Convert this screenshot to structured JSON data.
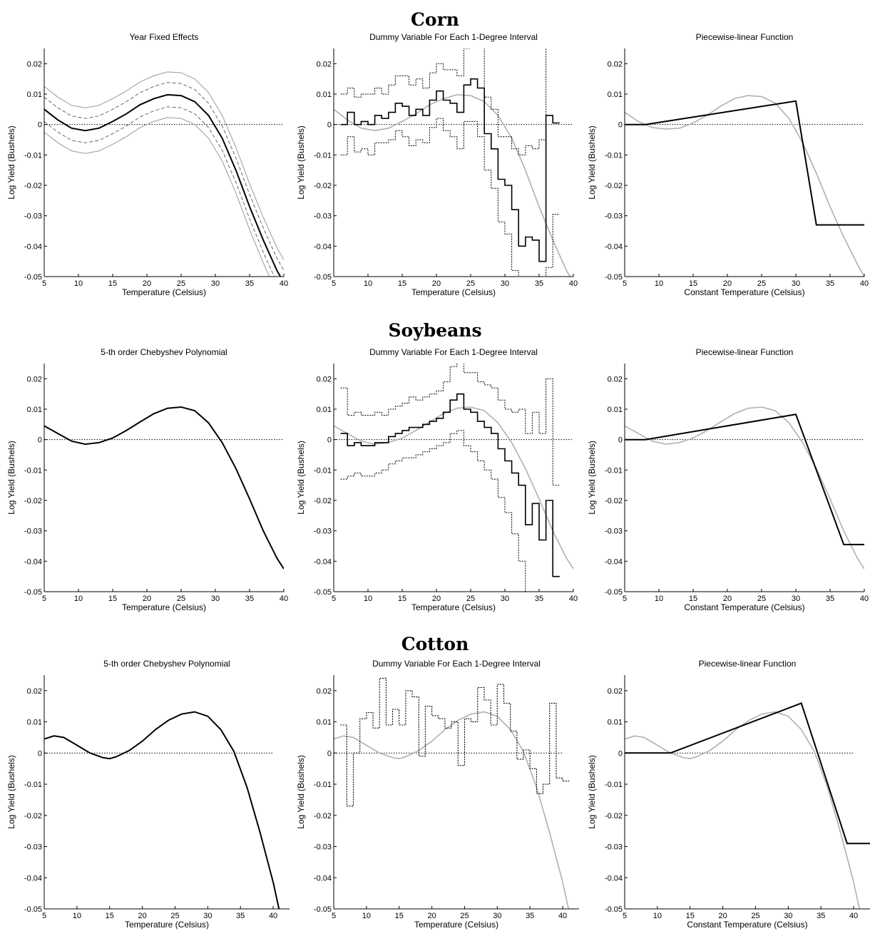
{
  "figure": {
    "crop_titles": [
      "Corn",
      "Soybeans",
      "Cotton"
    ]
  },
  "chart_data": [
    {
      "type": "line",
      "crop": "Corn",
      "title": "Year Fixed Effects",
      "xlabel": "Temperature (Celsius)",
      "ylabel": "Log Yield (Bushels)",
      "xlim": [
        5,
        40
      ],
      "ylim": [
        -0.05,
        0.025
      ],
      "xticks": [
        5,
        10,
        15,
        20,
        25,
        30,
        35,
        40
      ],
      "yticks": [
        "0.02",
        "0.01",
        "0",
        "-0.01",
        "-0.02",
        "-0.03",
        "-0.04",
        "-0.05"
      ],
      "series": [
        {
          "role": "main",
          "x": [
            5,
            7,
            9,
            11,
            13,
            15,
            17,
            19,
            21,
            23,
            25,
            27,
            29,
            31,
            33,
            35,
            37,
            39,
            40
          ],
          "y": [
            0.005,
            0.0015,
            -0.0012,
            -0.002,
            -0.0012,
            0.001,
            0.0035,
            0.0065,
            0.0085,
            0.0098,
            0.0095,
            0.0075,
            0.003,
            -0.0045,
            -0.015,
            -0.027,
            -0.038,
            -0.048,
            -0.052
          ]
        },
        {
          "role": "inner_band",
          "offset": 0.004
        },
        {
          "role": "outer_band",
          "offset": 0.0075
        }
      ],
      "zero_line": true
    },
    {
      "type": "step",
      "crop": "Corn",
      "title": "Dummy Variable For Each 1-Degree Interval",
      "xlabel": "Temperature (Celsius)",
      "ylabel": "Log Yield (Bushels)",
      "xlim": [
        5,
        40
      ],
      "ylim": [
        -0.05,
        0.025
      ],
      "xticks": [
        5,
        10,
        15,
        20,
        25,
        30,
        35,
        40
      ],
      "yticks": [
        "0.02",
        "0.01",
        "0",
        "-0.01",
        "-0.02",
        "-0.03",
        "-0.04",
        "-0.05"
      ],
      "start": 6,
      "estimates": [
        0,
        0.004,
        0,
        0.001,
        0,
        0.003,
        0.002,
        0.004,
        0.007,
        0.006,
        0.003,
        0.005,
        0.003,
        0.008,
        0.011,
        0.008,
        0.007,
        0.004,
        0.013,
        0.015,
        0.012,
        -0.003,
        -0.008,
        -0.018,
        -0.02,
        -0.028,
        -0.04,
        -0.037,
        -0.038,
        -0.045,
        0.003,
        0.0005
      ],
      "ci_halfwidth": [
        0.01,
        0.008,
        0.009,
        0.009,
        0.01,
        0.009,
        0.008,
        0.009,
        0.009,
        0.01,
        0.01,
        0.01,
        0.009,
        0.009,
        0.009,
        0.01,
        0.011,
        0.012,
        0.012,
        0.014,
        0.016,
        0.012,
        0.013,
        0.014,
        0.016,
        0.02,
        0.03,
        0.03,
        0.03,
        0.04,
        0.05,
        0.03
      ],
      "reference_x": [
        5,
        7,
        9,
        11,
        13,
        15,
        17,
        19,
        21,
        23,
        25,
        27,
        29,
        31,
        33,
        35,
        37,
        39,
        40
      ],
      "reference_y": [
        0.005,
        0.0015,
        -0.0012,
        -0.002,
        -0.0012,
        0.001,
        0.0035,
        0.0065,
        0.0085,
        0.0098,
        0.0095,
        0.0075,
        0.003,
        -0.0045,
        -0.015,
        -0.027,
        -0.038,
        -0.048,
        -0.052
      ],
      "zero_line": true
    },
    {
      "type": "line",
      "crop": "Corn",
      "title": "Piecewise-linear Function",
      "xlabel": "Constant Temperature (Celsius)",
      "ylabel": "Log Yield (Bushels)",
      "xlim": [
        5,
        40
      ],
      "ylim": [
        -0.05,
        0.025
      ],
      "xticks": [
        5,
        10,
        15,
        20,
        25,
        30,
        35,
        40
      ],
      "yticks": [
        "0.02",
        "0.01",
        "0",
        "-0.01",
        "-0.02",
        "-0.03",
        "-0.04",
        "-0.05"
      ],
      "x": [
        5,
        8,
        30,
        33,
        40
      ],
      "y": [
        0,
        0,
        0.0077,
        -0.033,
        -0.033
      ],
      "reference_x": [
        5,
        7,
        9,
        11,
        13,
        15,
        17,
        19,
        21,
        23,
        25,
        27,
        29,
        31,
        33,
        35,
        37,
        39,
        40
      ],
      "reference_y": [
        0.004,
        0.001,
        -0.001,
        -0.0015,
        -0.0012,
        0.0005,
        0.003,
        0.006,
        0.0085,
        0.0095,
        0.0092,
        0.007,
        0.002,
        -0.006,
        -0.016,
        -0.027,
        -0.037,
        -0.046,
        -0.05
      ],
      "zero_line": true
    },
    {
      "type": "line",
      "crop": "Soybeans",
      "title": "5-th order Chebyshev Polynomial",
      "xlabel": "Temperature (Celsius)",
      "ylabel": "Log Yield (Bushels)",
      "xlim": [
        5,
        40
      ],
      "ylim": [
        -0.05,
        0.025
      ],
      "xticks": [
        5,
        10,
        15,
        20,
        25,
        30,
        35,
        40
      ],
      "yticks": [
        "0.02",
        "0.01",
        "0",
        "-0.01",
        "-0.02",
        "-0.03",
        "-0.04",
        "-0.05"
      ],
      "x": [
        5,
        7,
        9,
        11,
        13,
        15,
        17,
        19,
        21,
        23,
        25,
        27,
        29,
        31,
        33,
        35,
        37,
        39,
        40
      ],
      "y": [
        0.0045,
        0.002,
        -0.0005,
        -0.0015,
        -0.001,
        0.0005,
        0.003,
        0.0058,
        0.0085,
        0.0103,
        0.0107,
        0.0095,
        0.0055,
        -0.001,
        -0.0095,
        -0.0195,
        -0.03,
        -0.039,
        -0.0425
      ],
      "zero_line": true
    },
    {
      "type": "step",
      "crop": "Soybeans",
      "title": "Dummy Variable For Each 1-Degree Interval",
      "xlabel": "Temperature (Celsius)",
      "ylabel": "Log Yield (Bushels)",
      "xlim": [
        5,
        40
      ],
      "ylim": [
        -0.05,
        0.025
      ],
      "xticks": [
        5,
        10,
        15,
        20,
        25,
        30,
        35,
        40
      ],
      "yticks": [
        "0.02",
        "0.01",
        "0",
        "-0.01",
        "-0.02",
        "-0.03",
        "-0.04",
        "-0.05"
      ],
      "start": 6,
      "estimates": [
        0.002,
        -0.002,
        -0.001,
        -0.002,
        -0.002,
        -0.001,
        -0.001,
        0.001,
        0.002,
        0.003,
        0.004,
        0.004,
        0.005,
        0.006,
        0.007,
        0.009,
        0.013,
        0.015,
        0.01,
        0.009,
        0.006,
        0.004,
        0.002,
        -0.003,
        -0.007,
        -0.011,
        -0.015,
        -0.028,
        -0.021,
        -0.033,
        -0.02,
        -0.045
      ],
      "ci_halfwidth": [
        0.015,
        0.01,
        0.01,
        0.01,
        0.01,
        0.01,
        0.009,
        0.009,
        0.009,
        0.009,
        0.01,
        0.009,
        0.009,
        0.009,
        0.009,
        0.01,
        0.011,
        0.012,
        0.012,
        0.013,
        0.013,
        0.014,
        0.015,
        0.016,
        0.017,
        0.02,
        0.025,
        0.03,
        0.03,
        0.035,
        0.04,
        0.03
      ],
      "reference_x": [
        5,
        7,
        9,
        11,
        13,
        15,
        17,
        19,
        21,
        23,
        25,
        27,
        29,
        31,
        33,
        35,
        37,
        39,
        40
      ],
      "reference_y": [
        0.0045,
        0.002,
        -0.0005,
        -0.0015,
        -0.001,
        0.0005,
        0.003,
        0.0058,
        0.0085,
        0.0103,
        0.0107,
        0.0095,
        0.0055,
        -0.001,
        -0.0095,
        -0.0195,
        -0.03,
        -0.039,
        -0.0425
      ],
      "zero_line": true
    },
    {
      "type": "line",
      "crop": "Soybeans",
      "title": "Piecewise-linear Function",
      "xlabel": "Constant Temperature (Celsius)",
      "ylabel": "Log Yield (Bushels)",
      "xlim": [
        5,
        40
      ],
      "ylim": [
        -0.05,
        0.025
      ],
      "xticks": [
        5,
        10,
        15,
        20,
        25,
        30,
        35,
        40
      ],
      "yticks": [
        "0.02",
        "0.01",
        "0",
        "-0.01",
        "-0.02",
        "-0.03",
        "-0.04",
        "-0.05"
      ],
      "x": [
        5,
        8,
        30,
        37,
        40
      ],
      "y": [
        0,
        0,
        0.0083,
        -0.0345,
        -0.0345
      ],
      "reference_x": [
        5,
        7,
        9,
        11,
        13,
        15,
        17,
        19,
        21,
        23,
        25,
        27,
        29,
        31,
        33,
        35,
        37,
        39,
        40
      ],
      "reference_y": [
        0.0045,
        0.002,
        -0.0005,
        -0.0015,
        -0.001,
        0.0005,
        0.003,
        0.0058,
        0.0085,
        0.0103,
        0.0107,
        0.0095,
        0.0055,
        -0.001,
        -0.0095,
        -0.0195,
        -0.03,
        -0.039,
        -0.0425
      ],
      "zero_line": true
    },
    {
      "type": "line",
      "crop": "Cotton",
      "title": "5-th order Chebyshev Polynomial",
      "xlabel": "Temperature (Celsius)",
      "ylabel": "Log Yield (Bushels)",
      "xlim": [
        5,
        42.5
      ],
      "ylim": [
        -0.05,
        0.025
      ],
      "xticks": [
        5,
        10,
        15,
        20,
        25,
        30,
        35,
        40
      ],
      "yticks": [
        "0.02",
        "0.01",
        "0",
        "-0.01",
        "-0.02",
        "-0.03",
        "-0.04",
        "-0.05"
      ],
      "x": [
        5,
        6.5,
        8,
        10,
        12,
        14,
        15,
        16,
        18,
        20,
        22,
        24,
        26,
        28,
        30,
        32,
        34,
        36,
        38,
        40,
        41
      ],
      "y": [
        0.0045,
        0.0055,
        0.005,
        0.0025,
        0.0,
        -0.0015,
        -0.0018,
        -0.0012,
        0.0008,
        0.0038,
        0.0075,
        0.0105,
        0.0125,
        0.0132,
        0.0118,
        0.0075,
        0.0005,
        -0.011,
        -0.0255,
        -0.0415,
        -0.051
      ],
      "zero_line": true,
      "zero_line_xmax": 40
    },
    {
      "type": "step",
      "crop": "Cotton",
      "title": "Dummy Variable For Each 1-Degree Interval",
      "xlabel": "Temperature (Celsius)",
      "ylabel": "Log Yield (Bushels)",
      "xlim": [
        5,
        42.5
      ],
      "ylim": [
        -0.05,
        0.025
      ],
      "xticks": [
        5,
        10,
        15,
        20,
        25,
        30,
        35,
        40
      ],
      "yticks": [
        "0.02",
        "0.01",
        "0",
        "-0.01",
        "-0.02",
        "-0.03",
        "-0.04",
        "-0.05"
      ],
      "start": 6,
      "single_series": true,
      "estimates": [
        0.009,
        -0.017,
        0.0,
        0.011,
        0.013,
        0.008,
        0.024,
        0.009,
        0.014,
        0.009,
        0.02,
        0.018,
        -0.001,
        0.015,
        0.012,
        0.011,
        0.008,
        0.01,
        -0.004,
        0.011,
        0.01,
        0.021,
        0.017,
        0.009,
        0.022,
        0.016,
        0.007,
        -0.002,
        0.001,
        -0.005,
        -0.013,
        -0.01,
        0.016,
        -0.008,
        -0.009
      ],
      "reference_x": [
        5,
        6.5,
        8,
        10,
        12,
        14,
        15,
        16,
        18,
        20,
        22,
        24,
        26,
        28,
        30,
        32,
        34,
        36,
        38,
        40,
        41
      ],
      "reference_y": [
        0.0045,
        0.0055,
        0.005,
        0.0025,
        0.0,
        -0.0015,
        -0.0018,
        -0.0012,
        0.0008,
        0.0038,
        0.0075,
        0.0105,
        0.0125,
        0.0132,
        0.0118,
        0.0075,
        0.0005,
        -0.011,
        -0.0255,
        -0.0415,
        -0.051
      ],
      "zero_line": true,
      "zero_line_xmax": 40
    },
    {
      "type": "line",
      "crop": "Cotton",
      "title": "Piecewise-linear Function",
      "xlabel": "Constant Temperature (Celsius)",
      "ylabel": "Log Yield (Bushels)",
      "xlim": [
        5,
        42.5
      ],
      "ylim": [
        -0.05,
        0.025
      ],
      "xticks": [
        5,
        10,
        15,
        20,
        25,
        30,
        35,
        40
      ],
      "yticks": [
        "0.02",
        "0.01",
        "0",
        "-0.01",
        "-0.02",
        "-0.03",
        "-0.04",
        "-0.05"
      ],
      "x": [
        5,
        12,
        32,
        39,
        42.5
      ],
      "y": [
        0,
        0,
        0.016,
        -0.029,
        -0.029
      ],
      "reference_x": [
        5,
        6.5,
        8,
        10,
        12,
        14,
        15,
        16,
        18,
        20,
        22,
        24,
        26,
        28,
        30,
        32,
        34,
        36,
        38,
        40,
        41
      ],
      "reference_y": [
        0.0045,
        0.0055,
        0.005,
        0.0025,
        0.0,
        -0.0015,
        -0.0018,
        -0.0012,
        0.0008,
        0.0038,
        0.0075,
        0.0105,
        0.0125,
        0.0132,
        0.0118,
        0.0075,
        0.0005,
        -0.011,
        -0.0255,
        -0.0415,
        -0.051
      ],
      "zero_line": true,
      "zero_line_xmax": 40
    }
  ]
}
